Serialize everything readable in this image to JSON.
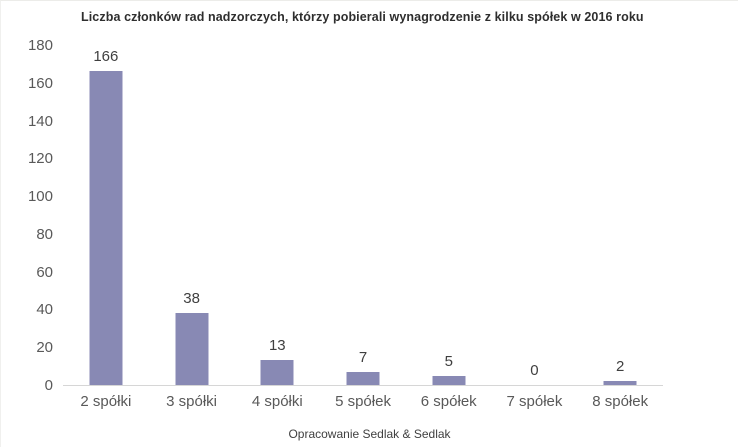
{
  "chart": {
    "title": "Liczba członków rad nadzorczych, którzy pobierali wynagrodzenie z kilku spółek w 2016 roku",
    "source": "Opracowanie Sedlak & Sedlak"
  },
  "chart_data": {
    "type": "bar",
    "title": "Liczba członków rad nadzorczych, którzy pobierali wynagrodzenie z kilku spółek w 2016 roku",
    "categories": [
      "2 spółki",
      "3 spółki",
      "4 spółki",
      "5 spółek",
      "6 spółek",
      "7 spółek",
      "8 spółek"
    ],
    "values": [
      166,
      38,
      13,
      7,
      5,
      0,
      2
    ],
    "xlabel": "",
    "ylabel": "",
    "ylim": [
      0,
      180
    ],
    "yticks": [
      0,
      20,
      40,
      60,
      80,
      100,
      120,
      140,
      160,
      180
    ],
    "grid": false,
    "legend": false,
    "annotations": "data labels above each bar",
    "source": "Opracowanie Sedlak & Sedlak"
  },
  "colors": {
    "bar": "#8889b4",
    "title_text": "#2e2e2e",
    "axis_text": "#595959",
    "value_text": "#3f3f3f",
    "baseline": "#d6d6d6"
  }
}
